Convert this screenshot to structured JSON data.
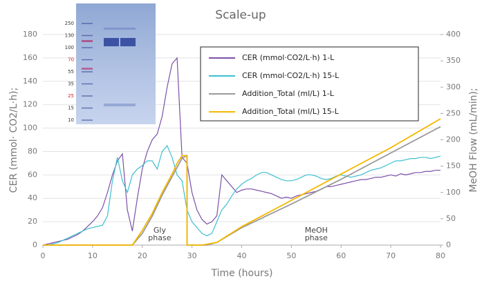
{
  "chart_data": {
    "type": "line",
    "title": "Scale-up",
    "x_label": "Time (hours)",
    "y_label": "CER (mmol· CO2/L·h);",
    "y2_label": "MeOH Flow (mL/min);",
    "xlim": [
      0,
      80
    ],
    "xticks": [
      0,
      10,
      20,
      30,
      40,
      50,
      60,
      70,
      80
    ],
    "ylim": [
      0,
      180
    ],
    "yticks": [
      0,
      20,
      40,
      60,
      80,
      100,
      120,
      140,
      160,
      180
    ],
    "y2lim": [
      0,
      400
    ],
    "y2ticks": [
      0,
      50,
      100,
      150,
      200,
      250,
      300,
      350,
      400
    ],
    "grid": true,
    "x": [
      0,
      1,
      2,
      3,
      4,
      5,
      6,
      7,
      8,
      9,
      10,
      11,
      12,
      13,
      14,
      15,
      16,
      17,
      18,
      19,
      20,
      21,
      22,
      23,
      24,
      25,
      26,
      27,
      28,
      29,
      30,
      31,
      32,
      33,
      34,
      35,
      36,
      37,
      38,
      39,
      40,
      41,
      42,
      43,
      44,
      45,
      46,
      47,
      48,
      49,
      50,
      51,
      52,
      53,
      54,
      55,
      56,
      57,
      58,
      59,
      60,
      61,
      62,
      63,
      64,
      65,
      66,
      67,
      68,
      69,
      70,
      71,
      72,
      73,
      74,
      75,
      76,
      77,
      78,
      79,
      80
    ],
    "series": [
      {
        "name": "CER (mmol·CO2/L·h) 1-L",
        "color": "#7b4fa8",
        "values": [
          0,
          1,
          2,
          3,
          4,
          5,
          7,
          9,
          12,
          16,
          20,
          25,
          32,
          45,
          60,
          72,
          78,
          30,
          12,
          40,
          65,
          80,
          90,
          95,
          110,
          135,
          155,
          160,
          75,
          70,
          45,
          30,
          22,
          18,
          20,
          25,
          60,
          55,
          50,
          45,
          47,
          48,
          48,
          47,
          46,
          45,
          44,
          42,
          40,
          41,
          40,
          42,
          43,
          44,
          45,
          46,
          48,
          50,
          50,
          51,
          52,
          53,
          54,
          55,
          56,
          56,
          57,
          58,
          58,
          59,
          60,
          59,
          61,
          60,
          61,
          62,
          62,
          63,
          63,
          64,
          64
        ]
      },
      {
        "name": "CER (mmol·CO2/L·h) 15-L",
        "color": "#3bbfcf",
        "values": [
          0,
          0,
          1,
          2,
          4,
          6,
          8,
          10,
          12,
          14,
          15,
          16,
          17,
          25,
          55,
          75,
          55,
          45,
          60,
          65,
          68,
          72,
          72,
          65,
          80,
          85,
          75,
          60,
          55,
          30,
          20,
          15,
          10,
          8,
          10,
          20,
          30,
          35,
          42,
          48,
          52,
          55,
          57,
          60,
          62,
          62,
          60,
          58,
          56,
          55,
          55,
          56,
          58,
          60,
          60,
          59,
          57,
          56,
          57,
          59,
          60,
          59,
          58,
          59,
          60,
          62,
          64,
          65,
          66,
          68,
          70,
          72,
          72,
          73,
          74,
          74,
          75,
          75,
          74,
          75,
          76
        ]
      },
      {
        "name": "Addition_Total (ml/L) 1-L",
        "color": "#9a9a9a",
        "axis": "y2",
        "x": [
          0,
          18,
          20,
          22,
          24,
          26,
          28,
          29,
          29,
          33,
          35,
          40,
          50,
          60,
          70,
          80
        ],
        "values": [
          0,
          0,
          22,
          55,
          95,
          130,
          165,
          170,
          0,
          0,
          5,
          33,
          78,
          125,
          175,
          225
        ]
      },
      {
        "name": "Addition_Total (ml/L) 15-L",
        "color": "#f5b800",
        "axis": "y2",
        "x": [
          0,
          18,
          20,
          22,
          24,
          26,
          27,
          28,
          29,
          29,
          32,
          35,
          40,
          50,
          60,
          70,
          80
        ],
        "values": [
          0,
          0,
          28,
          60,
          100,
          135,
          155,
          170,
          170,
          0,
          0,
          5,
          35,
          85,
          135,
          185,
          240
        ]
      }
    ],
    "annotations": [
      {
        "text": "Gly",
        "x": 23.5,
        "y": 12.5
      },
      {
        "text": "phase",
        "x": 23.5,
        "y": 6
      },
      {
        "text": "MeOH",
        "x": 55,
        "y": 12.5
      },
      {
        "text": "phase",
        "x": 55,
        "y": 6
      }
    ],
    "gel_markers": [
      {
        "label": "250",
        "color": "#333"
      },
      {
        "label": "130",
        "color": "#333"
      },
      {
        "label": "100",
        "color": "#333"
      },
      {
        "label": "70",
        "color": "#d02020"
      },
      {
        "label": "55",
        "color": "#333"
      },
      {
        "label": "35",
        "color": "#333"
      },
      {
        "label": "25",
        "color": "#d02020"
      },
      {
        "label": "15",
        "color": "#333"
      },
      {
        "label": "10",
        "color": "#333"
      }
    ]
  }
}
